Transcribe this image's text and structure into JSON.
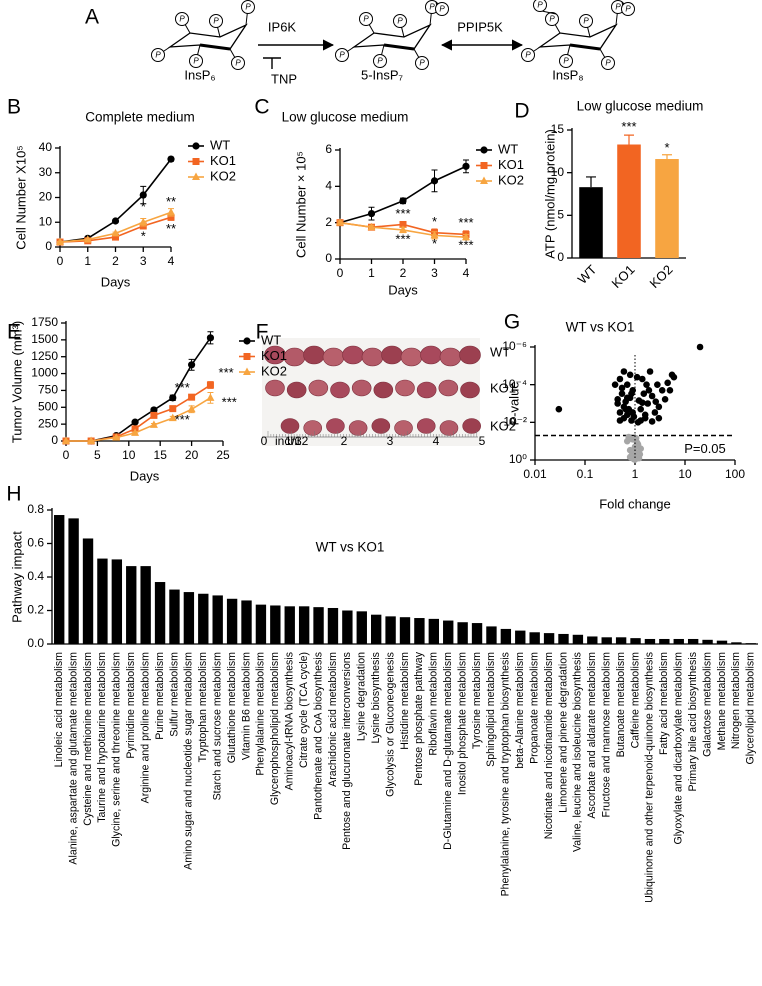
{
  "diagram": {
    "panel": "A",
    "phosphate_label": "P",
    "compounds": [
      "InsP₆",
      "5-InsP₇",
      "InsP₈"
    ],
    "enzymes": [
      "IP6K",
      "PPIP5K"
    ],
    "inhibitor": "TNP"
  },
  "photo": {
    "panel": "F",
    "rows": [
      "WT",
      "KO1",
      "KO2"
    ],
    "ruler_labels": [
      "0",
      "1",
      "2",
      "3",
      "4",
      "5"
    ],
    "ruler_unit": "inch",
    "ruler_fraction": "1/32"
  },
  "chart_data": [
    {
      "panel": "B",
      "type": "line",
      "title": "Complete medium",
      "xlabel": "Days",
      "ylabel": "Cell Number X10⁵",
      "x": [
        0,
        1,
        2,
        3,
        4
      ],
      "xlim": [
        0,
        4
      ],
      "xticks": [
        0,
        1,
        2,
        3,
        4
      ],
      "ylim": [
        0,
        40
      ],
      "yticks": [
        0,
        10,
        20,
        30,
        40
      ],
      "legend": "right",
      "series": [
        {
          "name": "WT",
          "color": "#000000",
          "marker": "circle",
          "values": [
            2,
            3.5,
            10.5,
            21,
            35.5
          ],
          "errors": [
            0.3,
            0.3,
            0.5,
            3.5,
            0.8
          ]
        },
        {
          "name": "KO1",
          "color": "#f26522",
          "marker": "square",
          "values": [
            2,
            2.5,
            4,
            8.5,
            12
          ],
          "errors": [
            0.2,
            0.2,
            0.4,
            1.2,
            1.2
          ]
        },
        {
          "name": "KO2",
          "color": "#f7a541",
          "marker": "triangle",
          "values": [
            2,
            3,
            5.5,
            10,
            14
          ],
          "errors": [
            0.2,
            0.3,
            0.5,
            1.5,
            1.5
          ]
        }
      ],
      "annotations": [
        {
          "text": "*",
          "x": 3,
          "y": 16
        },
        {
          "text": "*",
          "x": 3,
          "y": 4
        },
        {
          "text": "**",
          "x": 4,
          "y": 18
        },
        {
          "text": "**",
          "x": 4,
          "y": 7
        }
      ]
    },
    {
      "panel": "C",
      "type": "line",
      "title": "Low glucose medium",
      "xlabel": "Days",
      "ylabel": "Cell Number × 10⁵",
      "x": [
        0,
        1,
        2,
        3,
        4
      ],
      "xlim": [
        0,
        4
      ],
      "xticks": [
        0,
        1,
        2,
        3,
        4
      ],
      "ylim": [
        0,
        6
      ],
      "yticks": [
        0,
        2,
        4,
        6
      ],
      "legend": "right",
      "series": [
        {
          "name": "WT",
          "color": "#000000",
          "marker": "circle",
          "values": [
            2.0,
            2.5,
            3.2,
            4.3,
            5.1
          ],
          "errors": [
            0.1,
            0.35,
            0.15,
            0.6,
            0.35
          ]
        },
        {
          "name": "KO1",
          "color": "#f26522",
          "marker": "square",
          "values": [
            2.0,
            1.75,
            1.9,
            1.45,
            1.35
          ],
          "errors": [
            0.1,
            0.1,
            0.1,
            0.2,
            0.2
          ]
        },
        {
          "name": "KO2",
          "color": "#f7a541",
          "marker": "triangle",
          "values": [
            2.0,
            1.75,
            1.6,
            1.3,
            1.2
          ],
          "errors": [
            0.1,
            0.1,
            0.15,
            0.2,
            0.15
          ]
        }
      ],
      "annotations": [
        {
          "text": "***",
          "x": 2,
          "y": 2.45
        },
        {
          "text": "***",
          "x": 2,
          "y": 1.05
        },
        {
          "text": "*",
          "x": 3,
          "y": 2.0
        },
        {
          "text": "*",
          "x": 3,
          "y": 0.8
        },
        {
          "text": "***",
          "x": 4,
          "y": 1.95
        },
        {
          "text": "***",
          "x": 4,
          "y": 0.7
        }
      ]
    },
    {
      "panel": "D",
      "type": "bar",
      "title": "Low glucose medium",
      "ylabel": "ATP (nmol/mg protein)",
      "categories": [
        "WT",
        "KO1",
        "KO2"
      ],
      "values": [
        8.3,
        13.3,
        11.6
      ],
      "errors": [
        1.2,
        1.1,
        0.5
      ],
      "colors": [
        "#000000",
        "#f26522",
        "#f7a541"
      ],
      "ylim": [
        0,
        15
      ],
      "yticks": [
        0,
        5,
        10,
        15
      ],
      "annotations": [
        {
          "text": "***",
          "category": "KO1",
          "y": 15.3
        },
        {
          "text": "*",
          "category": "KO2",
          "y": 12.8
        }
      ]
    },
    {
      "panel": "E",
      "type": "line",
      "xlabel": "Days",
      "ylabel": "Tumor Volume (mm³)",
      "x": [
        0,
        4,
        8,
        11,
        14,
        17,
        20,
        23
      ],
      "xlim": [
        0,
        25
      ],
      "xticks": [
        0,
        5,
        10,
        15,
        20,
        25
      ],
      "ylim": [
        0,
        1750
      ],
      "yticks": [
        0,
        250,
        500,
        750,
        1000,
        1250,
        1500,
        1750
      ],
      "legend": "right",
      "series": [
        {
          "name": "WT",
          "color": "#000000",
          "marker": "circle",
          "values": [
            0,
            0,
            80,
            280,
            460,
            640,
            1130,
            1530
          ],
          "errors": [
            0,
            0,
            15,
            20,
            30,
            40,
            80,
            90
          ]
        },
        {
          "name": "KO1",
          "color": "#f26522",
          "marker": "square",
          "values": [
            0,
            0,
            60,
            180,
            380,
            480,
            650,
            830
          ],
          "errors": [
            0,
            0,
            10,
            15,
            25,
            30,
            40,
            50
          ]
        },
        {
          "name": "KO2",
          "color": "#f7a541",
          "marker": "triangle",
          "values": [
            0,
            0,
            50,
            120,
            240,
            340,
            470,
            640
          ],
          "errors": [
            0,
            0,
            10,
            15,
            20,
            25,
            50,
            80
          ]
        }
      ],
      "annotations": [
        {
          "text": "***",
          "x": 18.5,
          "y": 780
        },
        {
          "text": "***",
          "x": 25.5,
          "y": 1000
        },
        {
          "text": "***",
          "x": 18.5,
          "y": 300
        },
        {
          "text": "***",
          "x": 26,
          "y": 560
        }
      ]
    },
    {
      "panel": "G",
      "type": "scatter",
      "title": "WT vs KO1",
      "xlabel": "Fold change",
      "ylabel": "P-value",
      "xscale": "log",
      "yscale": "log",
      "xlim": [
        0.01,
        100
      ],
      "ylim": [
        1,
        1e-06
      ],
      "xticks": [
        0.01,
        0.1,
        1,
        10,
        100
      ],
      "yticks": [
        {
          "value": 1,
          "label": "10⁰"
        },
        {
          "value": 0.01,
          "label": "10⁻²"
        },
        {
          "value": 0.0001,
          "label": "10⁻⁴"
        },
        {
          "value": 1e-06,
          "label": "10⁻⁶"
        }
      ],
      "threshold": {
        "value": 0.05,
        "label": "P=0.05"
      },
      "reference_x": 1,
      "series": [
        {
          "color": "#000000",
          "x": [
            0.03,
            0.4,
            0.45,
            0.5,
            0.5,
            0.55,
            0.6,
            0.6,
            0.65,
            0.7,
            0.7,
            0.75,
            0.8,
            0.8,
            0.85,
            0.9,
            0.9,
            0.95,
            1.1,
            1.2,
            1.3,
            1.4,
            1.5,
            1.6,
            1.7,
            1.8,
            2,
            2.2,
            2.5,
            2.8,
            3,
            3.5,
            4,
            4.5,
            5,
            5.5,
            6,
            0.5,
            0.6,
            0.7,
            1.3,
            1.6,
            2.2,
            3,
            20,
            0.45,
            0.55,
            0.65,
            0.85,
            1.15,
            1.4,
            1.9,
            2.6
          ],
          "y": [
            0.002,
            0.0001,
            0.001,
            5e-05,
            0.003,
            0.0003,
            2e-05,
            0.006,
            0.0008,
            0.0001,
            0.004,
            0.002,
            3e-05,
            0.0005,
            0.008,
            0.0002,
            0.003,
            0.005,
            4e-05,
            0.0007,
            0.002,
            5e-05,
            0.0003,
            0.006,
            0.0001,
            0.001,
            2e-05,
            0.0004,
            0.003,
            0.0001,
            0.0015,
            0.0002,
            0.0006,
            8e-05,
            0.0002,
            3e-05,
            4e-05,
            0.008,
            0.0015,
            0.0005,
            0.008,
            0.004,
            0.009,
            0.006,
            1e-06,
            0.0006,
            0.00015,
            0.002,
            0.0003,
            0.01,
            0.0009,
            0.0002,
            0.0008
          ]
        },
        {
          "color": "#a6a6a6",
          "x": [
            0.7,
            0.8,
            0.85,
            0.9,
            0.95,
            1,
            1,
            1.05,
            1.1,
            1.15,
            1.2,
            1.3,
            0.75,
            0.9,
            1.0,
            1.1,
            0.8,
            1.25
          ],
          "y": [
            0.1,
            0.3,
            0.6,
            0.08,
            0.9,
            0.2,
            0.5,
            0.07,
            0.4,
            0.15,
            0.8,
            0.25,
            0.06,
            0.35,
            0.95,
            0.12,
            0.7,
            0.5
          ]
        }
      ]
    },
    {
      "panel": "H",
      "type": "bar",
      "title": "WT vs KO1",
      "ylabel": "Pathway impact",
      "color": "#000000",
      "ylim": [
        0,
        0.8
      ],
      "yticks": [
        {
          "value": 0,
          "label": "0.0"
        },
        0.2,
        0.4,
        0.6,
        0.8
      ],
      "categories": [
        "Linoleic acid metabolism",
        "Alanine, aspartate and glutamate metabolism",
        "Cysteine and methionine metabolism",
        "Taurine and hypotaurine metabolism",
        "Glycine, serine and threonine metabolism",
        "Pyrimidine metabolism",
        "Arginine and proline metabolism",
        "Purine metabolism",
        "Sulfur metabolism",
        "Amino sugar and nucleotide sugar metabolism",
        "Tryptophan metabolism",
        "Starch and sucrose metabolism",
        "Glutathione metabolism",
        "Vitamin B6 metabolism",
        "Phenylalanine metabolism",
        "Glycerophospholipid metabolism",
        "Aminoacyl-tRNA biosynthesis",
        "Citrate cycle (TCA cycle)",
        "Pantothenate and CoA biosynthesis",
        "Arachidonic acid metabolism",
        "Pentose and glucuronate interconversions",
        "Lysine degradation",
        "Lysine biosynthesis",
        "Glycolysis or Gluconeogenesis",
        "Histidine metabolism",
        "Pentose phosphate pathway",
        "Riboflavin metabolism",
        "D-Glutamine and D-glutamate metabolism",
        "Inositol phosphate metabolism",
        "Tyrosine metabolism",
        "Sphingolipid metabolism",
        "Phenylalanine, tyrosine and tryptophan biosynthesis",
        "beta-Alanine metabolism",
        "Propanoate metabolism",
        "Nicotinate and nicotinamide metabolism",
        "Limonene and pinene degradation",
        "Valine, leucine and isoleucine biosynthesis",
        "Ascorbate and aldarate metabolism",
        "Fructose and mannose metabolism",
        "Butanoate metabolism",
        "Caffeine metabolism",
        "Ubiquinone and other terpenoid-quinone biosynthesis",
        "Fatty acid metabolism",
        "Glyoxylate and dicarboxylate metabolism",
        "Primary bile acid biosynthesis",
        "Galactose metabolism",
        "Methane metabolism",
        "Nitrogen metabolism",
        "Glycerolipid metabolism"
      ],
      "values": [
        0.77,
        0.75,
        0.63,
        0.51,
        0.505,
        0.465,
        0.465,
        0.37,
        0.325,
        0.31,
        0.3,
        0.29,
        0.27,
        0.26,
        0.235,
        0.23,
        0.225,
        0.225,
        0.22,
        0.215,
        0.2,
        0.195,
        0.175,
        0.165,
        0.16,
        0.155,
        0.15,
        0.14,
        0.13,
        0.125,
        0.105,
        0.09,
        0.08,
        0.07,
        0.065,
        0.06,
        0.055,
        0.045,
        0.04,
        0.04,
        0.035,
        0.03,
        0.03,
        0.03,
        0.03,
        0.025,
        0.02,
        0.01,
        0.005
      ]
    }
  ]
}
